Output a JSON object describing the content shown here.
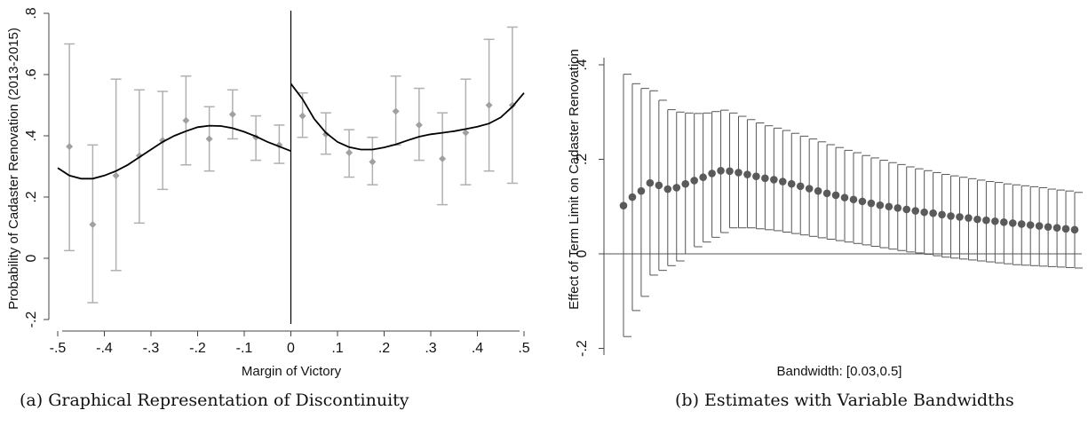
{
  "chart_data": [
    {
      "type": "scatter",
      "caption": "(a) Graphical Representation of Discontinuity",
      "xlabel": "Margin of Victory",
      "ylabel": "Probability of Cadaster Renovation (2013-2015)",
      "xlim": [
        -0.5,
        0.5
      ],
      "ylim": [
        -0.2,
        0.8
      ],
      "xticks": [
        {
          "value": -0.5,
          "label": "-.5"
        },
        {
          "value": -0.4,
          "label": "-.4"
        },
        {
          "value": -0.3,
          "label": "-.3"
        },
        {
          "value": -0.2,
          "label": "-.2"
        },
        {
          "value": -0.1,
          "label": "-.1"
        },
        {
          "value": 0,
          "label": "0"
        },
        {
          "value": 0.1,
          "label": ".1"
        },
        {
          "value": 0.2,
          "label": ".2"
        },
        {
          "value": 0.3,
          "label": ".3"
        },
        {
          "value": 0.4,
          "label": ".4"
        },
        {
          "value": 0.5,
          "label": ".5"
        }
      ],
      "yticks": [
        {
          "value": -0.2,
          "label": "-.2"
        },
        {
          "value": 0,
          "label": "0"
        },
        {
          "value": 0.2,
          "label": ".2"
        },
        {
          "value": 0.4,
          "label": ".4"
        },
        {
          "value": 0.6,
          "label": ".6"
        },
        {
          "value": 0.8,
          "label": ".8"
        }
      ],
      "cutoff": 0,
      "colors": {
        "points": "#a0a0a0",
        "error_bars": "#b0b0b0",
        "fit": "#000000",
        "axis": "#444444"
      },
      "binned_means": [
        {
          "x": -0.475,
          "y": 0.365,
          "lo": 0.025,
          "hi": 0.7
        },
        {
          "x": -0.425,
          "y": 0.11,
          "lo": -0.145,
          "hi": 0.37
        },
        {
          "x": -0.375,
          "y": 0.27,
          "lo": -0.04,
          "hi": 0.585
        },
        {
          "x": -0.325,
          "y": 0.335,
          "lo": 0.115,
          "hi": 0.55
        },
        {
          "x": -0.275,
          "y": 0.385,
          "lo": 0.225,
          "hi": 0.545
        },
        {
          "x": -0.225,
          "y": 0.45,
          "lo": 0.305,
          "hi": 0.595
        },
        {
          "x": -0.175,
          "y": 0.39,
          "lo": 0.285,
          "hi": 0.495
        },
        {
          "x": -0.125,
          "y": 0.47,
          "lo": 0.39,
          "hi": 0.55
        },
        {
          "x": -0.075,
          "y": 0.395,
          "lo": 0.32,
          "hi": 0.465
        },
        {
          "x": -0.025,
          "y": 0.37,
          "lo": 0.31,
          "hi": 0.435
        },
        {
          "x": 0.025,
          "y": 0.465,
          "lo": 0.395,
          "hi": 0.54
        },
        {
          "x": 0.075,
          "y": 0.405,
          "lo": 0.34,
          "hi": 0.475
        },
        {
          "x": 0.125,
          "y": 0.345,
          "lo": 0.265,
          "hi": 0.42
        },
        {
          "x": 0.175,
          "y": 0.315,
          "lo": 0.24,
          "hi": 0.395
        },
        {
          "x": 0.225,
          "y": 0.48,
          "lo": 0.37,
          "hi": 0.595
        },
        {
          "x": 0.275,
          "y": 0.435,
          "lo": 0.32,
          "hi": 0.555
        },
        {
          "x": 0.325,
          "y": 0.325,
          "lo": 0.175,
          "hi": 0.475
        },
        {
          "x": 0.375,
          "y": 0.41,
          "lo": 0.24,
          "hi": 0.585
        },
        {
          "x": 0.425,
          "y": 0.5,
          "lo": 0.285,
          "hi": 0.715
        },
        {
          "x": 0.475,
          "y": 0.5,
          "lo": 0.245,
          "hi": 0.755
        }
      ],
      "fit_left": {
        "x": [
          -0.5,
          -0.475,
          -0.45,
          -0.425,
          -0.4,
          -0.375,
          -0.35,
          -0.325,
          -0.3,
          -0.275,
          -0.25,
          -0.225,
          -0.2,
          -0.175,
          -0.15,
          -0.125,
          -0.1,
          -0.075,
          -0.05,
          -0.025,
          0
        ],
        "y": [
          0.295,
          0.27,
          0.26,
          0.26,
          0.27,
          0.285,
          0.305,
          0.33,
          0.355,
          0.38,
          0.4,
          0.415,
          0.428,
          0.433,
          0.432,
          0.425,
          0.413,
          0.398,
          0.38,
          0.365,
          0.35
        ]
      },
      "fit_right": {
        "x": [
          0,
          0.025,
          0.05,
          0.075,
          0.1,
          0.125,
          0.15,
          0.175,
          0.2,
          0.225,
          0.25,
          0.275,
          0.3,
          0.325,
          0.35,
          0.375,
          0.4,
          0.425,
          0.45,
          0.475,
          0.5
        ],
        "y": [
          0.57,
          0.52,
          0.455,
          0.41,
          0.38,
          0.363,
          0.355,
          0.355,
          0.362,
          0.372,
          0.385,
          0.397,
          0.405,
          0.41,
          0.415,
          0.422,
          0.43,
          0.44,
          0.46,
          0.495,
          0.54
        ]
      }
    },
    {
      "type": "scatter",
      "caption": "(b) Estimates with Variable Bandwidths",
      "xlabel": "Bandwidth: [0.03,0.5]",
      "ylabel": "Effect of Term Limit on Cadaster Renovation",
      "ylim": [
        -0.2,
        0.4
      ],
      "yticks": [
        {
          "value": -0.2,
          "label": "-.2"
        },
        {
          "value": 0,
          "label": "0"
        },
        {
          "value": 0.2,
          "label": ".2"
        },
        {
          "value": 0.4,
          "label": ".4"
        }
      ],
      "reference_line": 0,
      "colors": {
        "points": "#5a5a5a",
        "error_bars": "#555555",
        "axis": "#444444"
      },
      "estimates": [
        0.102,
        0.12,
        0.133,
        0.15,
        0.145,
        0.137,
        0.14,
        0.148,
        0.155,
        0.162,
        0.17,
        0.176,
        0.175,
        0.172,
        0.168,
        0.164,
        0.16,
        0.157,
        0.153,
        0.148,
        0.143,
        0.138,
        0.133,
        0.128,
        0.124,
        0.119,
        0.115,
        0.111,
        0.107,
        0.103,
        0.1,
        0.097,
        0.094,
        0.091,
        0.088,
        0.086,
        0.083,
        0.08,
        0.078,
        0.076,
        0.073,
        0.071,
        0.069,
        0.067,
        0.065,
        0.063,
        0.061,
        0.059,
        0.057,
        0.055,
        0.053,
        0.051
      ],
      "ci_lower": [
        -0.175,
        -0.12,
        -0.09,
        -0.045,
        -0.035,
        -0.025,
        -0.015,
        0.0,
        0.015,
        0.025,
        0.035,
        0.045,
        0.055,
        0.055,
        0.055,
        0.053,
        0.051,
        0.049,
        0.046,
        0.043,
        0.04,
        0.037,
        0.034,
        0.031,
        0.028,
        0.025,
        0.022,
        0.019,
        0.016,
        0.013,
        0.01,
        0.007,
        0.004,
        0.002,
        -0.001,
        -0.004,
        -0.007,
        -0.009,
        -0.011,
        -0.013,
        -0.015,
        -0.017,
        -0.019,
        -0.021,
        -0.023,
        -0.024,
        -0.025,
        -0.026,
        -0.027,
        -0.028,
        -0.029,
        -0.03
      ],
      "ci_upper": [
        0.38,
        0.36,
        0.35,
        0.345,
        0.325,
        0.305,
        0.3,
        0.298,
        0.297,
        0.298,
        0.301,
        0.304,
        0.298,
        0.291,
        0.284,
        0.277,
        0.271,
        0.266,
        0.261,
        0.255,
        0.249,
        0.243,
        0.237,
        0.231,
        0.225,
        0.219,
        0.214,
        0.208,
        0.203,
        0.198,
        0.193,
        0.189,
        0.184,
        0.18,
        0.176,
        0.172,
        0.168,
        0.165,
        0.162,
        0.159,
        0.156,
        0.153,
        0.151,
        0.148,
        0.146,
        0.144,
        0.142,
        0.14,
        0.137,
        0.135,
        0.133,
        0.13
      ]
    }
  ]
}
